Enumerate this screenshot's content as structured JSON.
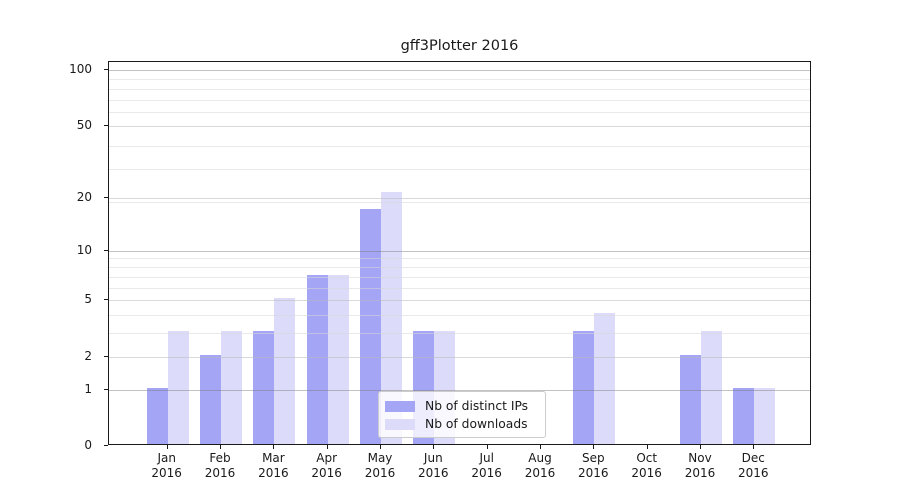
{
  "chart_data": {
    "type": "bar",
    "title": "gff3Plotter 2016",
    "categories": [
      "Jan",
      "Feb",
      "Mar",
      "Apr",
      "May",
      "Jun",
      "Jul",
      "Aug",
      "Sep",
      "Oct",
      "Nov",
      "Dec"
    ],
    "x_tick_year": "2016",
    "series": [
      {
        "name": "Nb of distinct IPs",
        "color": "#a5a5f6",
        "values": [
          1,
          2,
          3,
          7,
          17,
          3,
          0,
          0,
          3,
          0,
          2,
          1
        ]
      },
      {
        "name": "Nb of downloads",
        "color": "#dcdcfa",
        "values": [
          3,
          3,
          5,
          7,
          21,
          3,
          0,
          0,
          4,
          0,
          3,
          1
        ]
      }
    ],
    "y_ticks": [
      0,
      1,
      2,
      5,
      10,
      20,
      50,
      100
    ],
    "y_scale": "log10(1+v)",
    "y_axis_top_value": 110,
    "grid": true,
    "legend": {
      "position": "inside-bottom-center"
    }
  },
  "colors": {
    "background": "#ffffff",
    "axis": "#1a1a1a",
    "grid_major": "#bdbdbd",
    "grid_medium": "#dedede",
    "grid_minor": "#ececec",
    "legend_border": "#cccccc"
  }
}
